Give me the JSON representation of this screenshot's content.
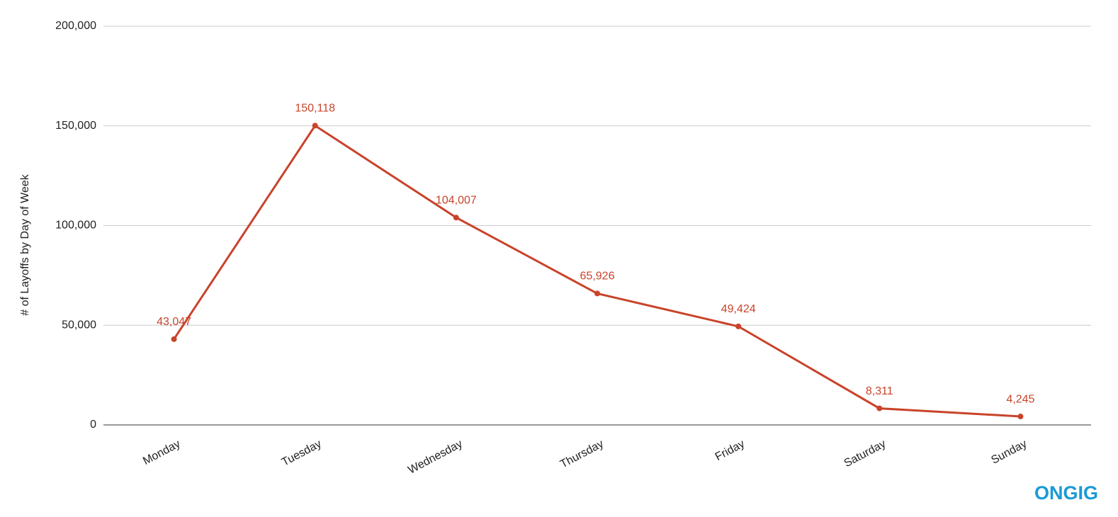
{
  "chart_data": {
    "type": "line",
    "y_axis_label": "# of Layoffs by Day of Week",
    "categories": [
      "Monday",
      "Tuesday",
      "Wednesday",
      "Thursday",
      "Friday",
      "Saturday",
      "Sunday"
    ],
    "values": [
      43047,
      150118,
      104007,
      65926,
      49424,
      8311,
      4245
    ],
    "value_labels": [
      "43,047",
      "150,118",
      "104,007",
      "65,926",
      "49,424",
      "8,311",
      "4,245"
    ],
    "color": "#c9432a",
    "ylim": [
      0,
      200000
    ],
    "yticks": [
      0,
      {
        "value": 50000,
        "label": "50,000"
      },
      {
        "value": 100000,
        "label": "100,000"
      },
      {
        "value": 150000,
        "label": "150,000"
      },
      {
        "value": 200000,
        "label": "200,000"
      }
    ],
    "grid": true
  },
  "logo": "ONGIG"
}
